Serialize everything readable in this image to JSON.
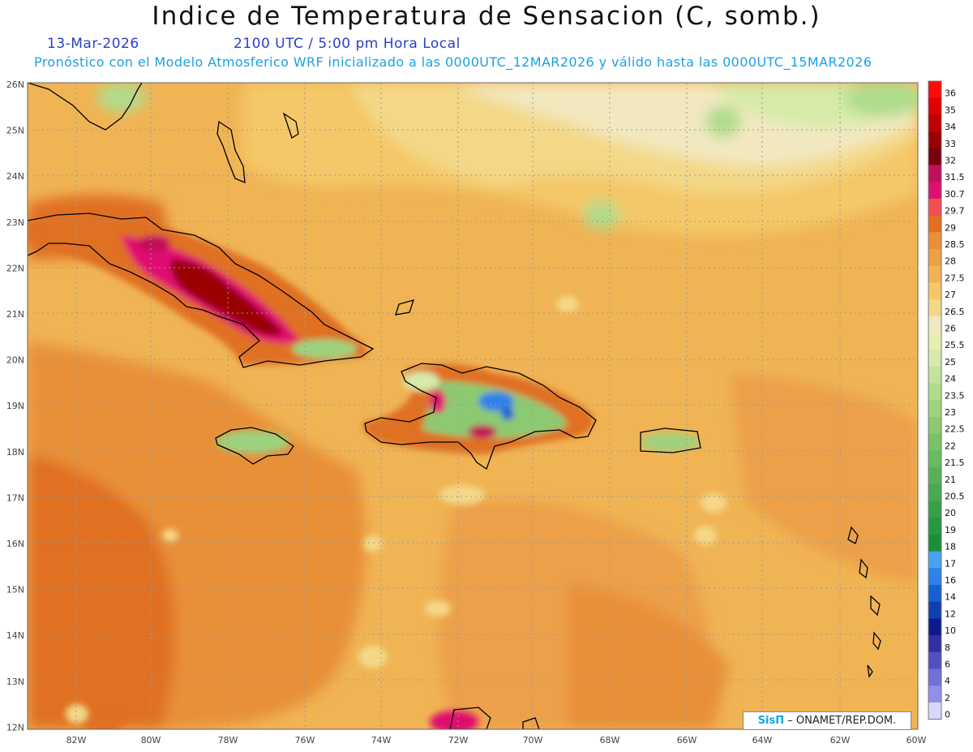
{
  "header": {
    "title": "Indice de Temperatura de Sensacion (C, somb.)",
    "date": "13-Mar-2026",
    "time": "2100 UTC / 5:00 pm Hora Local",
    "model_line": "Pronóstico con el Modelo Atmosferico WRF inicializado a las 0000UTC_12MAR2026 y válido hasta las  0000UTC_15MAR2026"
  },
  "map": {
    "lon_labels": [
      "82W",
      "80W",
      "78W",
      "76W",
      "74W",
      "72W",
      "70W",
      "68W",
      "66W",
      "64W",
      "62W",
      "60W"
    ],
    "lat_labels": [
      "26N",
      "25N",
      "24N",
      "23N",
      "22N",
      "21N",
      "20N",
      "19N",
      "18N",
      "17N",
      "16N",
      "15N",
      "14N",
      "13N",
      "12N"
    ],
    "colorbar": {
      "labels": [
        "36",
        "35",
        "34",
        "33",
        "32",
        "31.5",
        "30.7",
        "29.7",
        "29",
        "28.5",
        "28",
        "27.5",
        "27",
        "26.5",
        "26",
        "25.5",
        "25",
        "24",
        "23.5",
        "23",
        "22.5",
        "22",
        "21.5",
        "21",
        "20.5",
        "20",
        "19",
        "18",
        "17",
        "16",
        "14",
        "12",
        "10",
        "8",
        "6",
        "4",
        "2",
        "0"
      ],
      "colors": [
        "#ff0a0a",
        "#e00000",
        "#c00000",
        "#9a0000",
        "#7a0010",
        "#c0105a",
        "#e01070",
        "#f05050",
        "#e07020",
        "#e89038",
        "#eca048",
        "#f0b454",
        "#f4c868",
        "#f4d888",
        "#f2e8c0",
        "#e6efb0",
        "#d6ebaa",
        "#c4e49a",
        "#b0dc8c",
        "#9ed27e",
        "#8cca72",
        "#7ac268",
        "#6aba60",
        "#5ab058",
        "#4aa850",
        "#38a048",
        "#269840",
        "#18903a",
        "#4aa0f0",
        "#3080e8",
        "#1860d0",
        "#1040b0",
        "#101890",
        "#3030a0",
        "#5050c0",
        "#7070d8",
        "#9090e8",
        "#d8d8f8"
      ]
    }
  },
  "credit": {
    "brand": "SisΠ",
    "text": "– ONAMET/REP.DOM."
  }
}
